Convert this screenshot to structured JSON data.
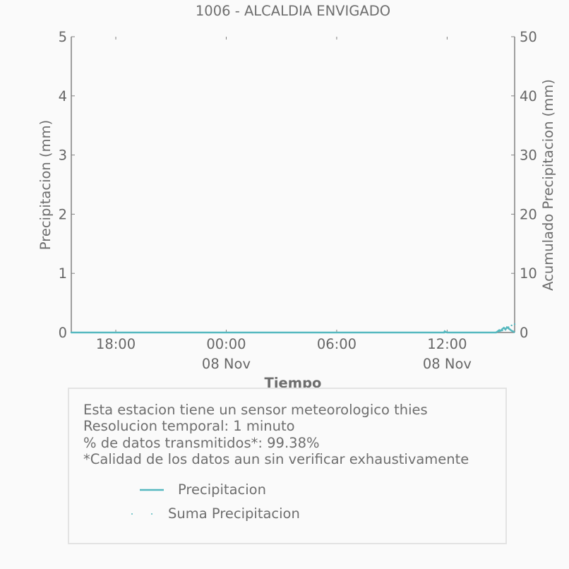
{
  "chart_data": {
    "type": "line",
    "title": "1006 - ALCALDIA ENVIGADO",
    "xlabel": "Tiempo",
    "ylabel": "Precipitacion (mm)",
    "y2label": "Acumulado Precipitacion (mm)",
    "ylim": [
      0,
      5
    ],
    "y2lim": [
      0,
      50
    ],
    "yticks": [
      "0",
      "1",
      "2",
      "3",
      "4",
      "5"
    ],
    "y2ticks": [
      "0",
      "10",
      "20",
      "30",
      "40",
      "50"
    ],
    "xlim": [
      "2024-11-07T15:35",
      "2024-11-08T15:40"
    ],
    "xticks": [
      {
        "t": "2024-11-07T18:00",
        "label": "18:00",
        "sublabel": ""
      },
      {
        "t": "2024-11-08T00:00",
        "label": "00:00",
        "sublabel": "08 Nov"
      },
      {
        "t": "2024-11-08T06:00",
        "label": "06:00",
        "sublabel": ""
      },
      {
        "t": "2024-11-08T12:00",
        "label": "12:00",
        "sublabel": "08 Nov"
      }
    ],
    "grid": false,
    "legend_position": "inside info box, bottom",
    "series": [
      {
        "name": "Precipitacion",
        "axis": "left",
        "style": "line",
        "color": "#55b8bf",
        "x": [
          "2024-11-07T15:35",
          "2024-11-08T11:50",
          "2024-11-08T11:52",
          "2024-11-08T11:55",
          "2024-11-08T12:00",
          "2024-11-08T14:40",
          "2024-11-08T14:45",
          "2024-11-08T14:50",
          "2024-11-08T14:55",
          "2024-11-08T15:00",
          "2024-11-08T15:05",
          "2024-11-08T15:10",
          "2024-11-08T15:15",
          "2024-11-08T15:20",
          "2024-11-08T15:25",
          "2024-11-08T15:30",
          "2024-11-08T15:35",
          "2024-11-08T15:40"
        ],
        "values": [
          0,
          0,
          0.02,
          0.01,
          0,
          0,
          0.02,
          0.04,
          0.03,
          0.06,
          0.08,
          0.05,
          0.09,
          0.07,
          0.05,
          0.03,
          0.02,
          0
        ]
      },
      {
        "name": "Suma Precipitacion",
        "axis": "right",
        "style": "dots",
        "color": "#55b8bf",
        "x": [
          "2024-11-07T15:35",
          "2024-11-08T11:50",
          "2024-11-08T12:00",
          "2024-11-08T14:40",
          "2024-11-08T14:50",
          "2024-11-08T15:00",
          "2024-11-08T15:10",
          "2024-11-08T15:20",
          "2024-11-08T15:30",
          "2024-11-08T15:40"
        ],
        "values": [
          0,
          0,
          0.05,
          0.05,
          0.15,
          0.35,
          0.6,
          0.9,
          1.2,
          1.4
        ]
      }
    ]
  },
  "info": {
    "line1": "Esta estacion tiene un sensor meteorologico thies",
    "line2": "Resolucion temporal: 1 minuto",
    "line3": "% de datos transmitidos*: 99.38%",
    "line4": "*Calidad de los datos aun sin verificar exhaustivamente"
  },
  "legend": {
    "line_label": "Precipitacion",
    "dots_label": "Suma Precipitacion"
  },
  "colors": {
    "series": "#55b8bf",
    "text": "#666666",
    "axis": "#808080"
  }
}
